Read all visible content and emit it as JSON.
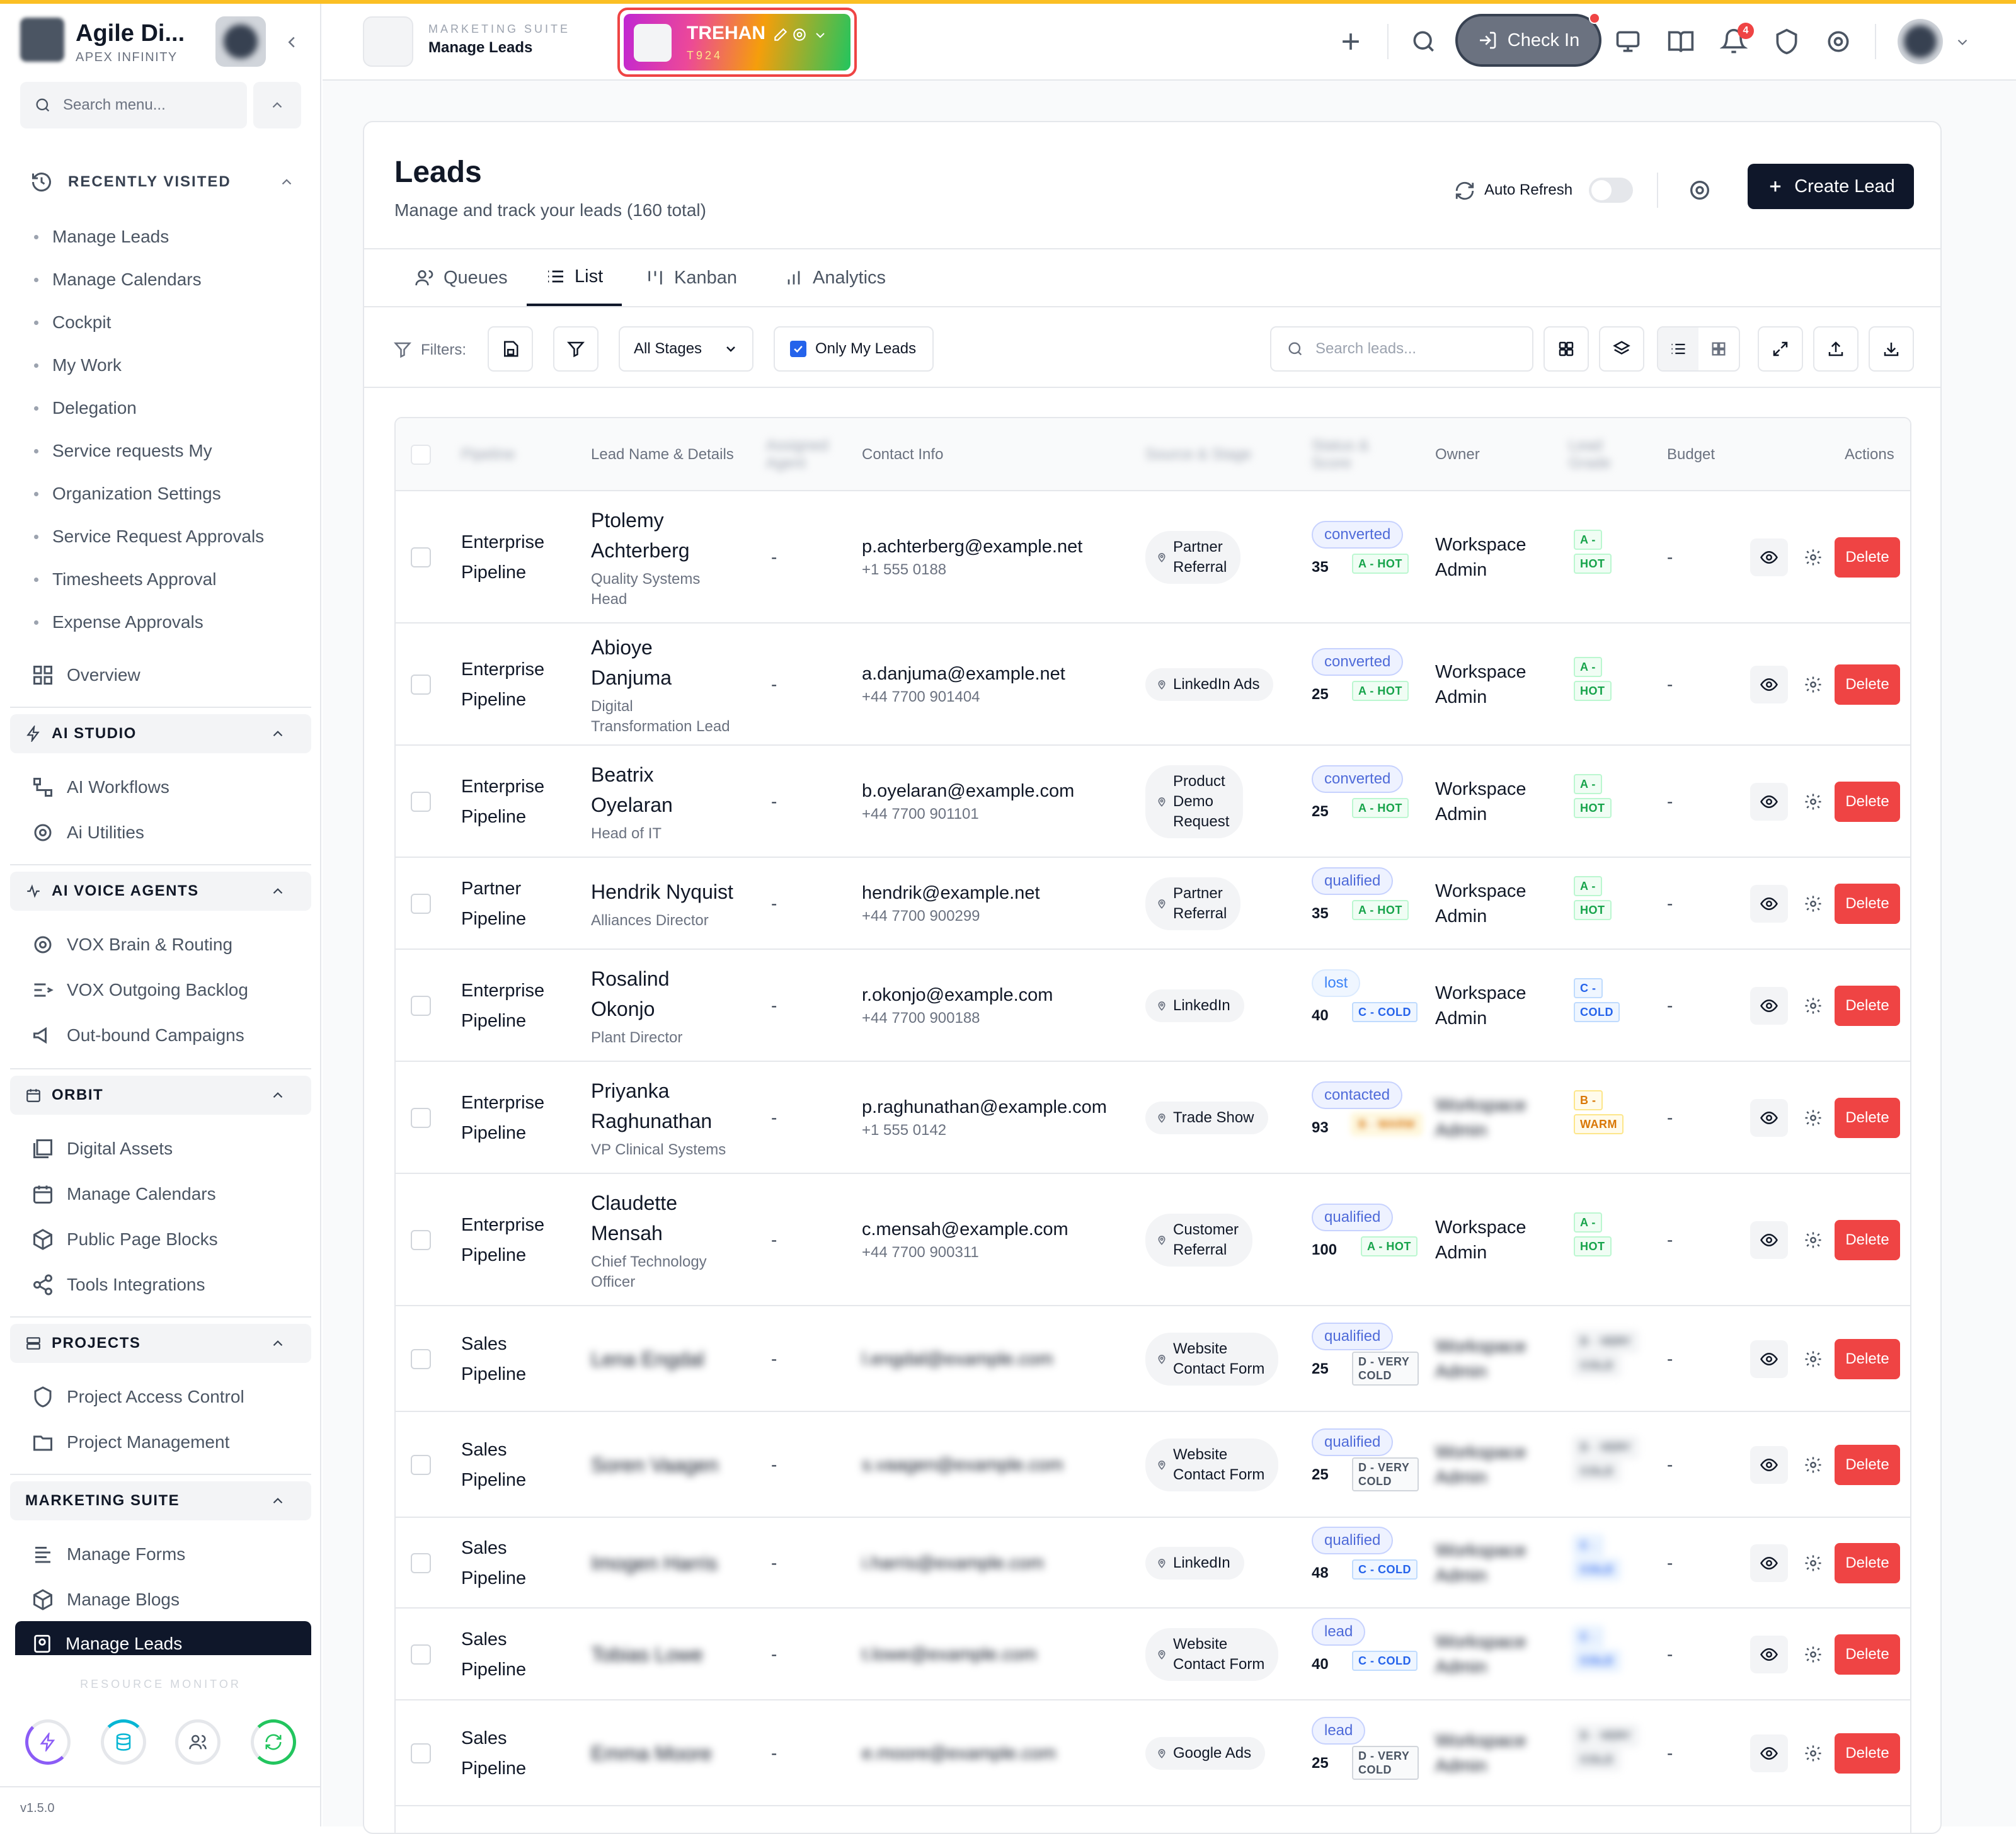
{
  "colors": {
    "accent": "#0f172a",
    "danger": "#ef4444",
    "topline": "#fbbf24"
  },
  "sidebar": {
    "app_name": "Agile Di...",
    "org_name": "APEX INFINITY",
    "search_placeholder": "Search menu...",
    "recent_title": "RECENTLY VISITED",
    "recent": [
      "Manage Leads",
      "Manage Calendars",
      "Cockpit",
      "My Work",
      "Delegation",
      "Service requests My",
      "Organization Settings",
      "Service Request Approvals",
      "Timesheets Approval",
      "Expense Approvals"
    ],
    "overview": "Overview",
    "ai_studio": {
      "title": "AI STUDIO",
      "items": [
        "AI Workflows",
        "Ai Utilities"
      ]
    },
    "ai_voice": {
      "title": "AI VOICE AGENTS",
      "items": [
        "VOX Brain & Routing",
        "VOX Outgoing Backlog",
        "Out-bound Campaigns"
      ]
    },
    "orbit": {
      "title": "ORBIT",
      "items": [
        "Digital Assets",
        "Manage Calendars",
        "Public Page Blocks",
        "Tools Integrations"
      ]
    },
    "projects": {
      "title": "PROJECTS",
      "items": [
        "Project Access Control",
        "Project Management"
      ]
    },
    "marketing": {
      "title": "MARKETING SUITE",
      "items": [
        "Manage Forms",
        "Manage Blogs",
        "Manage Leads"
      ]
    },
    "resource_monitor": "RESOURCE MONITOR",
    "version": "v1.5.0"
  },
  "topbar": {
    "suite_label": "MARKETING SUITE",
    "page_label": "Manage Leads",
    "tenant_name": "TREHAN",
    "tenant_code": "T924",
    "check_in": "Check In",
    "notif_count": "4"
  },
  "page": {
    "title": "Leads",
    "subtitle": "Manage and track your leads (160 total)",
    "auto_refresh": "Auto Refresh",
    "create_lead": "Create Lead",
    "tabs": [
      "Queues",
      "List",
      "Kanban",
      "Analytics"
    ],
    "filters_label": "Filters:",
    "stage_select": "All Stages",
    "only_my_leads": "Only My Leads",
    "search_placeholder": "Search leads..."
  },
  "table": {
    "headers": {
      "pipeline": "Pipeline",
      "lead": "Lead Name & Details",
      "assigned": "Assigned Agent",
      "contact": "Contact Info",
      "source": "Source & Stage",
      "status": "Status & Score",
      "owner": "Owner",
      "lead_grade": "Lead Grade",
      "budget": "Budget",
      "actions": "Actions"
    },
    "eye_label": "view",
    "delete_label": "Delete",
    "rows": [
      {
        "pipeline": [
          "Enterprise",
          "Pipeline"
        ],
        "name": [
          "Ptolemy",
          "Achterberg"
        ],
        "title": [
          "Quality Systems",
          "Head"
        ],
        "assigned": "-",
        "email": "p.achterberg@example.net",
        "phone": "+1 555 0188",
        "source": [
          "Partner",
          "Referral"
        ],
        "status": "converted",
        "score": "35",
        "grade": "A - HOT",
        "grade_class": "hot",
        "owner": [
          "Workspace",
          "Admin"
        ],
        "lc": [
          "A -",
          "HOT"
        ],
        "lc_class": "hot",
        "budget": "-",
        "blur": false
      },
      {
        "pipeline": [
          "Enterprise",
          "Pipeline"
        ],
        "name": [
          "Abioye",
          "Danjuma"
        ],
        "title": [
          "Digital",
          "Transformation Lead"
        ],
        "assigned": "-",
        "email": "a.danjuma@example.net",
        "phone": "+44 7700 901404",
        "source": [
          "LinkedIn Ads"
        ],
        "status": "converted",
        "score": "25",
        "grade": "A - HOT",
        "grade_class": "hot",
        "owner": [
          "Workspace",
          "Admin"
        ],
        "lc": [
          "A -",
          "HOT"
        ],
        "lc_class": "hot",
        "budget": "-",
        "blur": false
      },
      {
        "pipeline": [
          "Enterprise",
          "Pipeline"
        ],
        "name": [
          "Beatrix",
          "Oyelaran"
        ],
        "title": [
          "Head of IT"
        ],
        "assigned": "-",
        "email": "b.oyelaran@example.com",
        "phone": "+44 7700 901101",
        "source": [
          "Product",
          "Demo",
          "Request"
        ],
        "status": "converted",
        "score": "25",
        "grade": "A - HOT",
        "grade_class": "hot",
        "owner": [
          "Workspace",
          "Admin"
        ],
        "lc": [
          "A -",
          "HOT"
        ],
        "lc_class": "hot",
        "budget": "-",
        "blur": false
      },
      {
        "pipeline": [
          "Partner",
          "Pipeline"
        ],
        "name": [
          "Hendrik Nyquist"
        ],
        "title": [
          "Alliances Director"
        ],
        "assigned": "-",
        "email": "hendrik@example.net",
        "phone": "+44 7700 900299",
        "source": [
          "Partner",
          "Referral"
        ],
        "status": "qualified",
        "score": "35",
        "grade": "A - HOT",
        "grade_class": "hot",
        "owner": [
          "Workspace",
          "Admin"
        ],
        "lc": [
          "A -",
          "HOT"
        ],
        "lc_class": "hot",
        "budget": "-",
        "blur": false
      },
      {
        "pipeline": [
          "Enterprise",
          "Pipeline"
        ],
        "name": [
          "Rosalind",
          "Okonjo"
        ],
        "title": [
          "Plant Director"
        ],
        "assigned": "-",
        "email": "r.okonjo@example.com",
        "phone": "+44 7700 900188",
        "source": [
          "LinkedIn"
        ],
        "status": "lost",
        "score": "40",
        "grade": "C - COLD",
        "grade_class": "cold",
        "owner": [
          "Workspace",
          "Admin"
        ],
        "lc": [
          "C -",
          "COLD"
        ],
        "lc_class": "cold",
        "budget": "-",
        "blur": false
      },
      {
        "pipeline": [
          "Enterprise",
          "Pipeline"
        ],
        "name": [
          "Priyanka",
          "Raghunathan"
        ],
        "title": [
          "VP Clinical Systems"
        ],
        "assigned": "-",
        "email": "p.raghunathan@example.com",
        "phone": "+1 555 0142",
        "source": [
          "Trade Show"
        ],
        "status": "contacted",
        "score": "93",
        "grade": "B - WARM",
        "grade_class": "warm",
        "owner": [
          "Workspace",
          "Admin"
        ],
        "lc": [
          "B -",
          "WARM"
        ],
        "lc_class": "warm",
        "budget": "-",
        "blur": false,
        "blur_owner": true
      },
      {
        "pipeline": [
          "Enterprise",
          "Pipeline"
        ],
        "name": [
          "Claudette",
          "Mensah"
        ],
        "title": [
          "Chief Technology",
          "Officer"
        ],
        "assigned": "-",
        "email": "c.mensah@example.com",
        "phone": "+44 7700 900311",
        "source": [
          "Customer",
          "Referral"
        ],
        "status": "qualified",
        "score": "100",
        "grade": "A - HOT",
        "grade_class": "hot",
        "owner": [
          "Workspace",
          "Admin"
        ],
        "lc": [
          "A -",
          "HOT"
        ],
        "lc_class": "hot",
        "budget": "-",
        "blur": false
      },
      {
        "pipeline": [
          "Sales",
          "Pipeline"
        ],
        "name": [
          "Lena Engdal"
        ],
        "title": [
          ""
        ],
        "assigned": "-",
        "email": "l.engdal@example.com",
        "phone": "",
        "source": [
          "Website",
          "Contact Form"
        ],
        "status": "qualified",
        "score": "25",
        "grade": "D - VERY COLD",
        "grade_class": "vcold",
        "owner": [
          "Workspace",
          "Admin"
        ],
        "lc": [
          "D - VERY",
          "COLD"
        ],
        "lc_class": "vcold",
        "budget": "-",
        "blur": true
      },
      {
        "pipeline": [
          "Sales",
          "Pipeline"
        ],
        "name": [
          "Soren Vaagen"
        ],
        "title": [
          ""
        ],
        "assigned": "-",
        "email": "s.vaagen@example.com",
        "phone": "",
        "source": [
          "Website",
          "Contact Form"
        ],
        "status": "qualified",
        "score": "25",
        "grade": "D - VERY COLD",
        "grade_class": "vcold",
        "owner": [
          "Workspace",
          "Admin"
        ],
        "lc": [
          "D - VERY",
          "COLD"
        ],
        "lc_class": "vcold",
        "budget": "-",
        "blur": true
      },
      {
        "pipeline": [
          "Sales",
          "Pipeline"
        ],
        "name": [
          "Imogen Harris"
        ],
        "title": [
          ""
        ],
        "assigned": "-",
        "email": "i.harris@example.com",
        "phone": "",
        "source": [
          "LinkedIn"
        ],
        "status": "qualified",
        "score": "48",
        "grade": "C - COLD",
        "grade_class": "cold",
        "owner": [
          "Workspace",
          "Admin"
        ],
        "lc": [
          "C -",
          "COLD"
        ],
        "lc_class": "cold",
        "budget": "-",
        "blur": true
      },
      {
        "pipeline": [
          "Sales",
          "Pipeline"
        ],
        "name": [
          "Tobias Lowe"
        ],
        "title": [
          ""
        ],
        "assigned": "-",
        "email": "t.lowe@example.com",
        "phone": "",
        "source": [
          "Website",
          "Contact Form"
        ],
        "status": "lead",
        "score": "40",
        "grade": "C - COLD",
        "grade_class": "cold",
        "owner": [
          "Workspace",
          "Admin"
        ],
        "lc": [
          "C -",
          "COLD"
        ],
        "lc_class": "cold",
        "budget": "-",
        "blur": true
      },
      {
        "pipeline": [
          "Sales",
          "Pipeline"
        ],
        "name": [
          "Emma Moore"
        ],
        "title": [
          ""
        ],
        "assigned": "-",
        "email": "e.moore@example.com",
        "phone": "",
        "source": [
          "Google Ads"
        ],
        "status": "lead",
        "score": "25",
        "grade": "D - VERY COLD",
        "grade_class": "vcold",
        "owner": [
          "Workspace",
          "Admin"
        ],
        "lc": [
          "D - VERY",
          "COLD"
        ],
        "lc_class": "vcold",
        "budget": "-",
        "blur": true
      }
    ]
  }
}
